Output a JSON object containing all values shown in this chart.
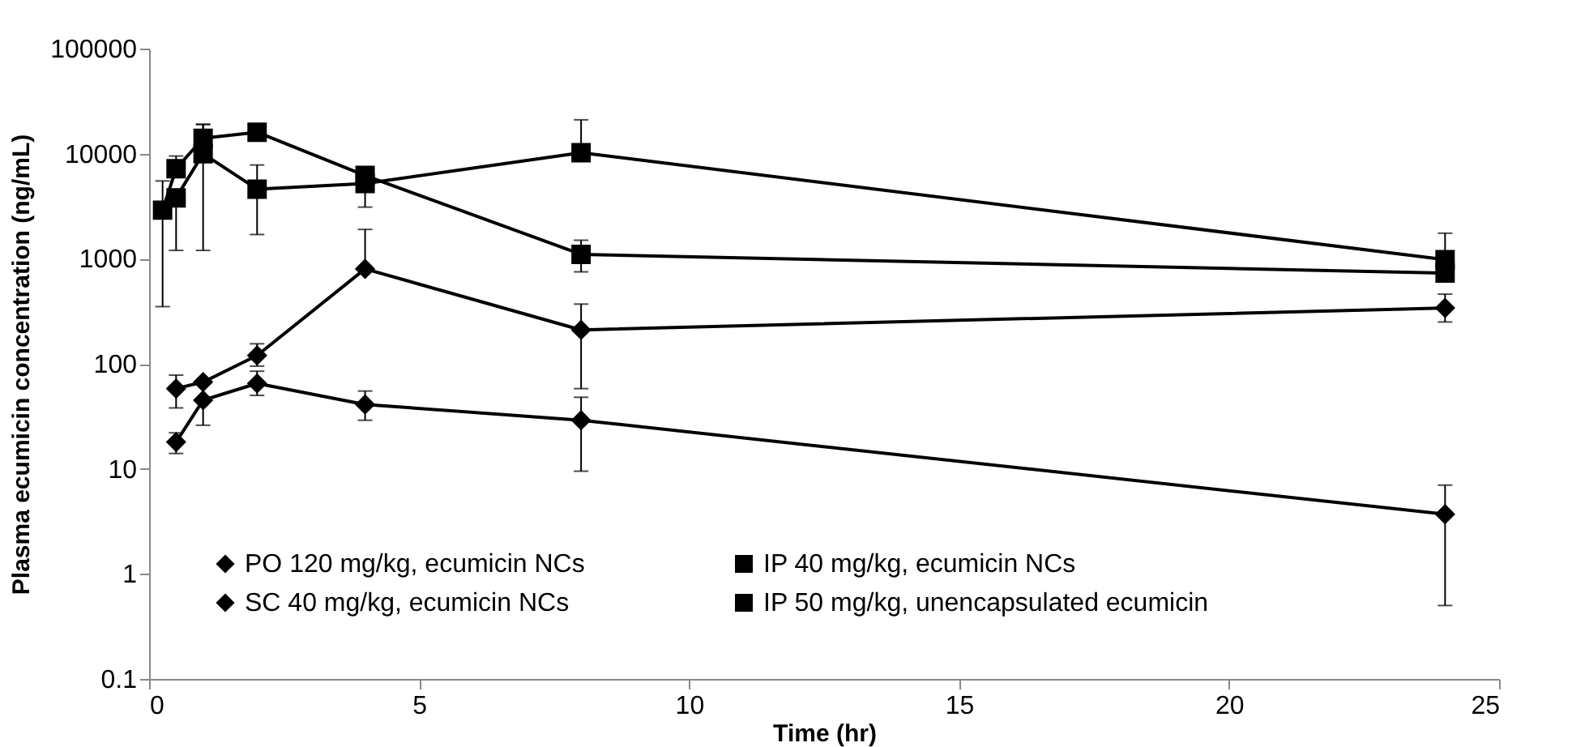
{
  "chart_data": {
    "type": "line",
    "xlabel": "Time (hr)",
    "ylabel": "Plasma ecumicin concentration (ng/mL)",
    "log": "y",
    "xlim": [
      0,
      25
    ],
    "xticks": [
      0,
      5,
      10,
      15,
      20,
      25
    ],
    "ylim": [
      0.1,
      100000
    ],
    "yticks": [
      0.1,
      1,
      10,
      100,
      1000,
      10000,
      100000
    ],
    "legend": "bottom",
    "grid": false,
    "series": [
      {
        "name": "PO 120 mg/kg, ecumicin NCs",
        "color": "#000000",
        "marker": "diamond",
        "x": [
          0.5,
          1,
          2,
          4,
          8,
          24
        ],
        "values": [
          18,
          45,
          65,
          41,
          29,
          3.7
        ],
        "errors": [
          [
            14,
            22
          ],
          [
            26,
            45
          ],
          [
            50,
            85
          ],
          [
            29,
            55
          ],
          [
            9.5,
            48
          ],
          [
            0.5,
            7
          ]
        ]
      },
      {
        "name": "SC 40 mg/kg, ecumicin NCs",
        "color": "#000000",
        "marker": "diamond",
        "x": [
          0.5,
          1,
          2,
          4,
          8,
          24
        ],
        "values": [
          58,
          67,
          120,
          800,
          210,
          340
        ],
        "errors": [
          [
            38,
            78
          ],
          null,
          [
            95,
            155
          ],
          [
            800,
            1900
          ],
          [
            58,
            370
          ],
          [
            250,
            460
          ]
        ]
      },
      {
        "name": "IP 40 mg/kg, ecumicin NCs",
        "color": "#000000",
        "marker": "square",
        "x": [
          0.5,
          1,
          2,
          4,
          8,
          24
        ],
        "values": [
          3800,
          10000,
          4600,
          5200,
          10200,
          980
        ],
        "errors": [
          [
            1200,
            3800
          ],
          [
            1200,
            19000
          ],
          [
            1700,
            7800
          ],
          [
            3100,
            5200
          ],
          [
            10200,
            21000
          ],
          [
            980,
            1750
          ]
        ]
      },
      {
        "name": "IP 50 mg/kg, unencapsulated ecumicin",
        "color": "#000000",
        "marker": "square",
        "x": [
          0.25,
          0.5,
          1,
          2,
          4,
          8,
          24
        ],
        "values": [
          2900,
          7200,
          14000,
          16000,
          6200,
          1100,
          730
        ],
        "errors": [
          [
            350,
            5500
          ],
          [
            7200,
            9500
          ],
          [
            14000,
            19000
          ],
          null,
          null,
          [
            750,
            1500
          ],
          null
        ]
      }
    ]
  }
}
